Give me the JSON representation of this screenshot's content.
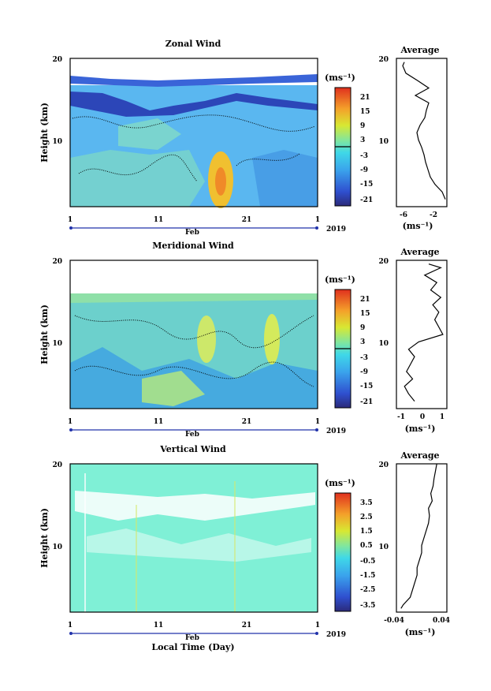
{
  "figure": {
    "xlabel": "Local Time (Day)",
    "month_label": "Feb",
    "year_label": "2019",
    "x_ticks": [
      "1",
      "11",
      "21",
      "1"
    ]
  },
  "chart_data": [
    {
      "type": "heatmap",
      "title": "Zonal Wind",
      "ylabel": "Height (km)",
      "ylim": [
        0,
        20
      ],
      "y_ticks": [
        "20",
        "10"
      ],
      "colorbar_unit": "(ms⁻¹)",
      "colorbar_ticks": [
        "21",
        "15",
        "9",
        "3",
        "-3",
        "-9",
        "-15",
        "-21"
      ],
      "colorbar_range": [
        -24,
        24
      ],
      "profile": {
        "title": "Average",
        "xlabel": "(ms⁻¹)",
        "xlim": [
          -7,
          -0.6
        ],
        "x_ticks": [
          "-6",
          "-2"
        ],
        "y_ticks": [
          "20",
          "10"
        ],
        "height": [
          1,
          2,
          3,
          4,
          5,
          6,
          7,
          8,
          9,
          10,
          11,
          12,
          13,
          14,
          15,
          16,
          17,
          18,
          19,
          19.5
        ],
        "value": [
          -0.8,
          -1.2,
          -2.1,
          -2.7,
          -3.0,
          -3.3,
          -3.5,
          -3.8,
          -4.2,
          -4.4,
          -4.0,
          -3.4,
          -3.2,
          -2.9,
          -4.6,
          -2.9,
          -4.3,
          -5.8,
          -6.2,
          -6.0
        ]
      }
    },
    {
      "type": "heatmap",
      "title": "Meridional Wind",
      "ylabel": "Height (km)",
      "ylim": [
        0,
        20
      ],
      "y_ticks": [
        "20",
        "10"
      ],
      "colorbar_unit": "(ms⁻¹)",
      "colorbar_ticks": [
        "21",
        "15",
        "9",
        "3",
        "-3",
        "-9",
        "-15",
        "-21"
      ],
      "colorbar_range": [
        -24,
        24
      ],
      "profile": {
        "title": "Average",
        "xlabel": "(ms⁻¹)",
        "xlim": [
          -1.2,
          1.3
        ],
        "x_ticks": [
          "-1",
          "0",
          "1"
        ],
        "y_ticks": [
          "20",
          "10"
        ],
        "height": [
          1,
          2,
          3,
          4,
          5,
          6,
          7,
          8,
          9,
          10,
          11,
          12,
          13,
          14,
          15,
          16,
          17,
          18,
          19,
          19.5
        ],
        "value": [
          -0.3,
          -0.6,
          -0.8,
          -0.4,
          -0.7,
          -0.5,
          -0.3,
          -0.6,
          -0.1,
          1.1,
          0.9,
          0.7,
          0.9,
          0.6,
          1.0,
          0.5,
          0.8,
          0.2,
          1.0,
          0.4
        ]
      }
    },
    {
      "type": "heatmap",
      "title": "Vertical Wind",
      "ylabel": "Height (km)",
      "ylim": [
        0,
        20
      ],
      "y_ticks": [
        "20",
        "10"
      ],
      "colorbar_unit": "(ms⁻¹)",
      "colorbar_ticks": [
        "3.5",
        "2.5",
        "1.5",
        "0.5",
        "-0.5",
        "-1.5",
        "-2.5",
        "-3.5"
      ],
      "colorbar_range": [
        -4,
        4
      ],
      "profile": {
        "title": "Average",
        "xlabel": "(ms⁻¹)",
        "xlim": [
          -0.06,
          0.05
        ],
        "x_ticks": [
          "-0.04",
          "0.04"
        ],
        "y_ticks": [
          "20",
          "10"
        ],
        "height": [
          0.5,
          1,
          2,
          3,
          4,
          5,
          6,
          7,
          8,
          9,
          10,
          11,
          12,
          13,
          14,
          15,
          16,
          17,
          18,
          19,
          20
        ],
        "value": [
          -0.05,
          -0.045,
          -0.03,
          -0.025,
          -0.02,
          -0.015,
          -0.015,
          -0.01,
          -0.005,
          -0.005,
          0.0,
          0.005,
          0.01,
          0.012,
          0.01,
          0.018,
          0.015,
          0.02,
          0.022,
          0.025,
          0.028
        ]
      }
    }
  ]
}
